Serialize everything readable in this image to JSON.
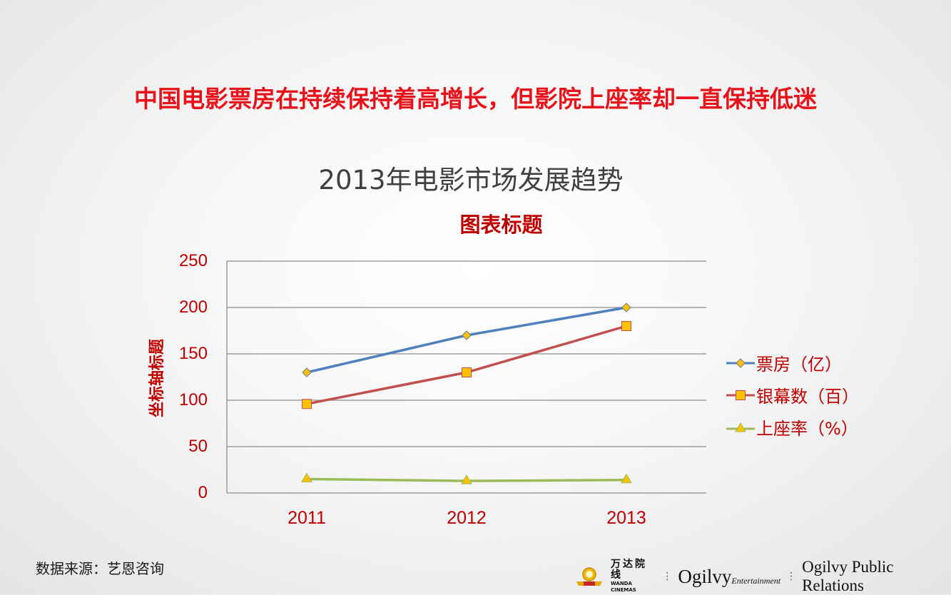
{
  "slide": {
    "headline": "中国电影票房在持续保持着高增长，但影院上座率却一直保持低迷",
    "title": "2013年电影市场发展趋势",
    "source": "数据来源：艺恩咨询"
  },
  "logos": {
    "wanda_cn": "万达院线",
    "wanda_en": "WANDA CINEMAS",
    "ogilvy_entertainment": "Ogilvy",
    "ogilvy_entertainment_sub": "Entertainment",
    "ogilvy_pr": "Ogilvy Public Relations"
  },
  "chart_data": {
    "type": "line",
    "title": "图表标题",
    "xlabel": "",
    "ylabel": "坐标轴标题",
    "categories": [
      "2011",
      "2012",
      "2013"
    ],
    "yticks": [
      "0",
      "50",
      "100",
      "150",
      "200",
      "250"
    ],
    "ylim": [
      0,
      250
    ],
    "grid": true,
    "legend_position": "right",
    "series": [
      {
        "name": "票房（亿）",
        "values": [
          130,
          170,
          200
        ],
        "color": "#4f81bd",
        "marker": "diamond",
        "marker_color": "#ffc000"
      },
      {
        "name": "银幕数（百）",
        "values": [
          96,
          130,
          180
        ],
        "color": "#c0504d",
        "marker": "square",
        "marker_color": "#ffc000"
      },
      {
        "name": "上座率（%）",
        "values": [
          15,
          13,
          14
        ],
        "color": "#9bbb59",
        "marker": "triangle",
        "marker_color": "#ffc000"
      }
    ]
  }
}
